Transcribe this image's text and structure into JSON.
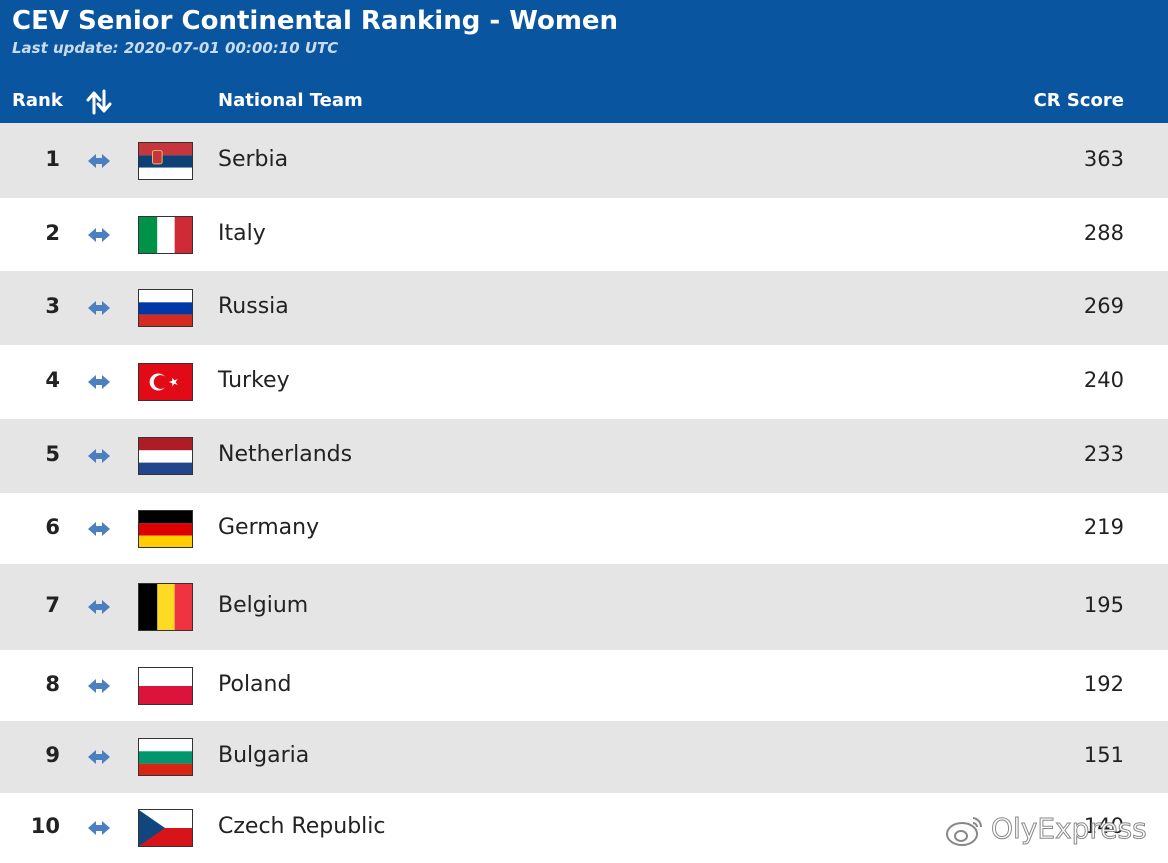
{
  "header": {
    "title": "CEV Senior Continental Ranking - Women",
    "last_update": "Last update: 2020-07-01 00:00:10 UTC",
    "columns": {
      "rank": "Rank",
      "movement_icon": "sort-arrows-icon",
      "team": "National Team",
      "score": "CR Score"
    }
  },
  "colors": {
    "header_bg": "#0a55a0",
    "row_alt": "#e5e5e5",
    "arrow": "#4a7fc0"
  },
  "rows": [
    {
      "rank": "1",
      "team": "Serbia",
      "score": "363",
      "flag": "serbia-flag-icon",
      "movement": "unchanged-icon"
    },
    {
      "rank": "2",
      "team": "Italy",
      "score": "288",
      "flag": "italy-flag-icon",
      "movement": "unchanged-icon"
    },
    {
      "rank": "3",
      "team": "Russia",
      "score": "269",
      "flag": "russia-flag-icon",
      "movement": "unchanged-icon"
    },
    {
      "rank": "4",
      "team": "Turkey",
      "score": "240",
      "flag": "turkey-flag-icon",
      "movement": "unchanged-icon"
    },
    {
      "rank": "5",
      "team": "Netherlands",
      "score": "233",
      "flag": "netherlands-flag-icon",
      "movement": "unchanged-icon"
    },
    {
      "rank": "6",
      "team": "Germany",
      "score": "219",
      "flag": "germany-flag-icon",
      "movement": "unchanged-icon"
    },
    {
      "rank": "7",
      "team": "Belgium",
      "score": "195",
      "flag": "belgium-flag-icon",
      "movement": "unchanged-icon"
    },
    {
      "rank": "8",
      "team": "Poland",
      "score": "192",
      "flag": "poland-flag-icon",
      "movement": "unchanged-icon"
    },
    {
      "rank": "9",
      "team": "Bulgaria",
      "score": "151",
      "flag": "bulgaria-flag-icon",
      "movement": "unchanged-icon"
    },
    {
      "rank": "10",
      "team": "Czech Republic",
      "score": "140",
      "flag": "czech-flag-icon",
      "movement": "unchanged-icon"
    }
  ],
  "watermark": {
    "text": "OlyExpress",
    "icon": "weibo-icon"
  }
}
